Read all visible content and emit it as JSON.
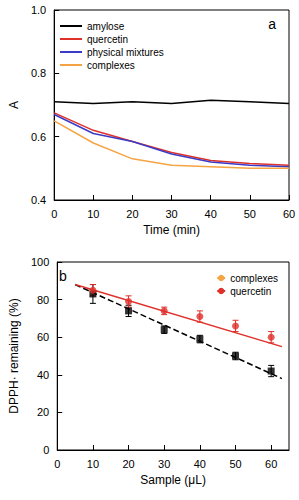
{
  "chart_data": [
    {
      "type": "line",
      "annotation": "a",
      "x_label": "Time (min)",
      "y_label": "A",
      "x": [
        0,
        10,
        20,
        30,
        40,
        50,
        60
      ],
      "series": [
        {
          "name": "amylose",
          "color": "#000000",
          "values": [
            0.71,
            0.705,
            0.71,
            0.705,
            0.715,
            0.71,
            0.705
          ]
        },
        {
          "name": "quercetin",
          "color": "#e0302a",
          "values": [
            0.675,
            0.62,
            0.585,
            0.55,
            0.525,
            0.515,
            0.51
          ]
        },
        {
          "name": "physical mixtures",
          "color": "#3b3bc8",
          "values": [
            0.67,
            0.61,
            0.585,
            0.545,
            0.52,
            0.51,
            0.505
          ]
        },
        {
          "name": "complexes",
          "color": "#f5a443",
          "values": [
            0.65,
            0.58,
            0.53,
            0.51,
            0.505,
            0.5,
            0.5
          ]
        }
      ],
      "xlim": [
        0,
        60
      ],
      "xticks": [
        0,
        10,
        20,
        30,
        40,
        50,
        60
      ],
      "ylim": [
        0.4,
        1.0
      ],
      "yticks": [
        0.4,
        0.6,
        0.8,
        {
          "value": 1,
          "label": "1.0"
        }
      ],
      "grid": false,
      "legend": "upper left"
    },
    {
      "type": "scatter",
      "annotation": "b",
      "x_label": "Sample (μL)",
      "y_label": "DPPH· remaining (%)",
      "series": [
        {
          "name": "complexes",
          "color": "#000000",
          "marker": "square",
          "line_style": "dashed",
          "x": [
            10,
            20,
            30,
            40,
            50,
            60
          ],
          "values": [
            83,
            74,
            64,
            59,
            50,
            42
          ],
          "errors": [
            5,
            3,
            2,
            2,
            2,
            3
          ],
          "fit_x": [
            5,
            63
          ],
          "fit_values": [
            88,
            38
          ]
        },
        {
          "name": "quercetin",
          "color": "#e0302a",
          "marker": "circle",
          "line_style": "solid",
          "x": [
            10,
            20,
            30,
            40,
            50,
            60
          ],
          "values": [
            85,
            79,
            74,
            71,
            66,
            60
          ],
          "errors": [
            3,
            3,
            2,
            3,
            3,
            3
          ],
          "fit_x": [
            5,
            63
          ],
          "fit_values": [
            88,
            55
          ]
        }
      ],
      "xlim": [
        0,
        65
      ],
      "xticks": [
        0,
        10,
        20,
        30,
        40,
        50,
        60
      ],
      "ylim": [
        0,
        100
      ],
      "yticks": [
        0,
        20,
        40,
        60,
        80,
        100
      ],
      "grid": false,
      "legend": "upper right"
    }
  ]
}
